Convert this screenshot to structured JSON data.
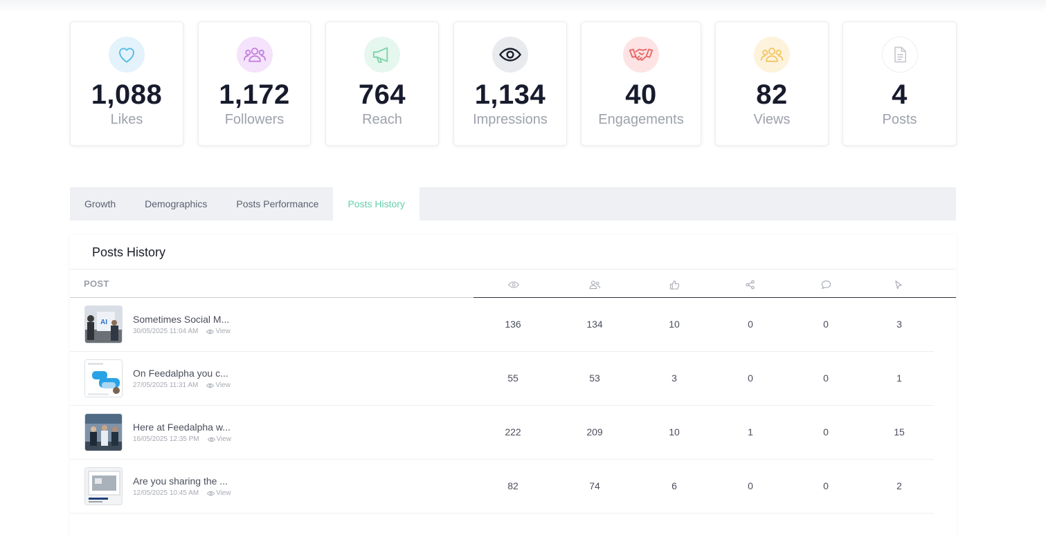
{
  "stats": [
    {
      "value": "1,088",
      "label": "Likes",
      "icon": "heart-icon",
      "bg": "#e4f3fb",
      "color": "#58bde6"
    },
    {
      "value": "1,172",
      "label": "Followers",
      "icon": "followers-icon",
      "bg": "#f4e3fa",
      "color": "#c37ee0"
    },
    {
      "value": "764",
      "label": "Reach",
      "icon": "megaphone-icon",
      "bg": "#e5f7ef",
      "color": "#7fd4a9"
    },
    {
      "value": "1,134",
      "label": "Impressions",
      "icon": "eye-icon",
      "bg": "#e8eaee",
      "color": "#1b1e2b"
    },
    {
      "value": "40",
      "label": "Engagements",
      "icon": "handshake-icon",
      "bg": "#fde3e3",
      "color": "#ea6c6c"
    },
    {
      "value": "82",
      "label": "Views",
      "icon": "viewers-icon",
      "bg": "#fdf3dc",
      "color": "#f3c564"
    },
    {
      "value": "4",
      "label": "Posts",
      "icon": "document-icon",
      "bg": "#ffffff",
      "color": "#c6c9cf"
    }
  ],
  "tabs": [
    "Growth",
    "Demographics",
    "Posts Performance",
    "Posts History"
  ],
  "active_tab": "Posts History",
  "panel": {
    "title": "Posts History",
    "post_header": "POST",
    "column_icons": [
      "eye-icon",
      "users-icon",
      "thumbs-up-icon",
      "share-icon",
      "comment-icon",
      "cursor-icon"
    ]
  },
  "posts": [
    {
      "title": "Sometimes Social M...",
      "date": "30/05/2025 11:04 AM",
      "view": "View",
      "stats": [
        "136",
        "134",
        "10",
        "0",
        "0",
        "3"
      ],
      "thumb": "office-photo"
    },
    {
      "title": "On Feedalpha you c...",
      "date": "27/05/2025 11:31 AM",
      "view": "View",
      "stats": [
        "55",
        "53",
        "3",
        "0",
        "0",
        "1"
      ],
      "thumb": "chat-graphic"
    },
    {
      "title": "Here at Feedalpha w...",
      "date": "16/05/2025 12:35 PM",
      "view": "View",
      "stats": [
        "222",
        "209",
        "10",
        "1",
        "0",
        "15"
      ],
      "thumb": "team-photo"
    },
    {
      "title": "Are you sharing the ...",
      "date": "12/05/2025 10:45 AM",
      "view": "View",
      "stats": [
        "82",
        "74",
        "6",
        "0",
        "0",
        "2"
      ],
      "thumb": "screen-graphic"
    }
  ]
}
